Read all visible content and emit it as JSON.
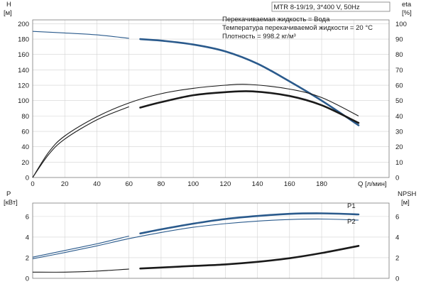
{
  "chart_data": [
    {
      "type": "line",
      "title": "MTR 8-19/19, 3*400 V, 50Hz",
      "info_lines": [
        "Перекачиваемая жидкость = Вода",
        "Температура перекачиваемой жидкости = 20 °C",
        "Плотность = 998.2 кг/м³"
      ],
      "xlabel": "Q [л/мин]",
      "x_ticks": [
        "0",
        "20",
        "40",
        "60",
        "80",
        "100",
        "120",
        "140",
        "160",
        "180"
      ],
      "xlim": [
        0,
        222
      ],
      "left_axis": {
        "label_line1": "H",
        "label_line2": "[м]",
        "ticks": [
          "0",
          "20",
          "40",
          "60",
          "80",
          "100",
          "120",
          "140",
          "160",
          "180",
          "200"
        ],
        "ylim": [
          0,
          205
        ]
      },
      "right_axis": {
        "label_line1": "eta",
        "label_line2": "[%]",
        "ticks": [
          "0",
          "10",
          "20",
          "30",
          "40",
          "50",
          "60",
          "70",
          "80",
          "90",
          "100"
        ],
        "ylim": [
          0,
          102.5
        ]
      },
      "grid": true,
      "series": [
        {
          "axis": "left",
          "color": "#2a5a8c",
          "thin_points": [
            [
              0,
              190
            ],
            [
              20,
              188
            ],
            [
              40,
              185.5
            ],
            [
              60,
              181
            ]
          ],
          "bold_points": [
            [
              67,
              180
            ],
            [
              80,
              178
            ],
            [
              100,
              173
            ],
            [
              120,
              164
            ],
            [
              140,
              148
            ],
            [
              160,
              125
            ],
            [
              180,
              100
            ],
            [
              203,
              68
            ]
          ]
        },
        {
          "axis": "right",
          "color": "#1a1a1a",
          "thin_points": [
            [
              0,
              0
            ],
            [
              10,
              15
            ],
            [
              20,
              25
            ],
            [
              40,
              37.5
            ],
            [
              60,
              46
            ]
          ],
          "bold_points": [
            [
              67,
              45.5
            ],
            [
              80,
              49
            ],
            [
              100,
              53.5
            ],
            [
              120,
              55.5
            ],
            [
              137,
              56
            ],
            [
              160,
              53
            ],
            [
              180,
              47
            ],
            [
              203,
              35.5
            ]
          ]
        },
        {
          "axis": "right",
          "color": "#1a1a1a",
          "thin_points": [
            [
              0,
              0
            ],
            [
              10,
              16.5
            ],
            [
              20,
              27
            ],
            [
              40,
              39.5
            ],
            [
              60,
              48.5
            ],
            [
              80,
              54.5
            ],
            [
              100,
              58
            ],
            [
              120,
              60
            ],
            [
              135,
              60.5
            ],
            [
              160,
              57.5
            ],
            [
              180,
              52
            ],
            [
              203,
              40
            ]
          ],
          "bold_points": []
        }
      ]
    },
    {
      "type": "line",
      "xlim": [
        0,
        222
      ],
      "left_axis": {
        "label_line1": "P",
        "label_line2": "[кВт]",
        "ticks": [
          "0",
          "2",
          "4",
          "6"
        ],
        "ylim": [
          0,
          7.3
        ]
      },
      "right_axis": {
        "label_line1": "NPSH",
        "label_line2": "[м]",
        "ticks": [
          "0",
          "2",
          "4",
          "6"
        ],
        "ylim": [
          0,
          7.3
        ]
      },
      "grid": true,
      "series": [
        {
          "name": "P1",
          "axis": "left",
          "color": "#2a5a8c",
          "thin_points": [
            [
              0,
              2.05
            ],
            [
              20,
              2.7
            ],
            [
              40,
              3.35
            ],
            [
              60,
              4.1
            ]
          ],
          "bold_points": [
            [
              67,
              4.35
            ],
            [
              80,
              4.75
            ],
            [
              100,
              5.3
            ],
            [
              120,
              5.75
            ],
            [
              140,
              6.05
            ],
            [
              160,
              6.25
            ],
            [
              180,
              6.3
            ],
            [
              203,
              6.2
            ]
          ]
        },
        {
          "name": "P2",
          "axis": "left",
          "color": "#2a5a8c",
          "thin_points": [
            [
              0,
              1.9
            ],
            [
              20,
              2.5
            ],
            [
              40,
              3.15
            ],
            [
              60,
              3.85
            ],
            [
              80,
              4.45
            ],
            [
              100,
              4.95
            ],
            [
              120,
              5.3
            ],
            [
              140,
              5.55
            ],
            [
              160,
              5.7
            ],
            [
              180,
              5.75
            ],
            [
              203,
              5.65
            ]
          ],
          "bold_points": []
        },
        {
          "axis": "right",
          "color": "#1a1a1a",
          "thin_points": [
            [
              0,
              0.6
            ],
            [
              20,
              0.6
            ],
            [
              40,
              0.7
            ],
            [
              60,
              0.9
            ]
          ],
          "bold_points": [
            [
              67,
              0.95
            ],
            [
              80,
              1.05
            ],
            [
              100,
              1.2
            ],
            [
              120,
              1.35
            ],
            [
              140,
              1.6
            ],
            [
              160,
              1.95
            ],
            [
              180,
              2.45
            ],
            [
              203,
              3.15
            ]
          ]
        }
      ]
    }
  ]
}
